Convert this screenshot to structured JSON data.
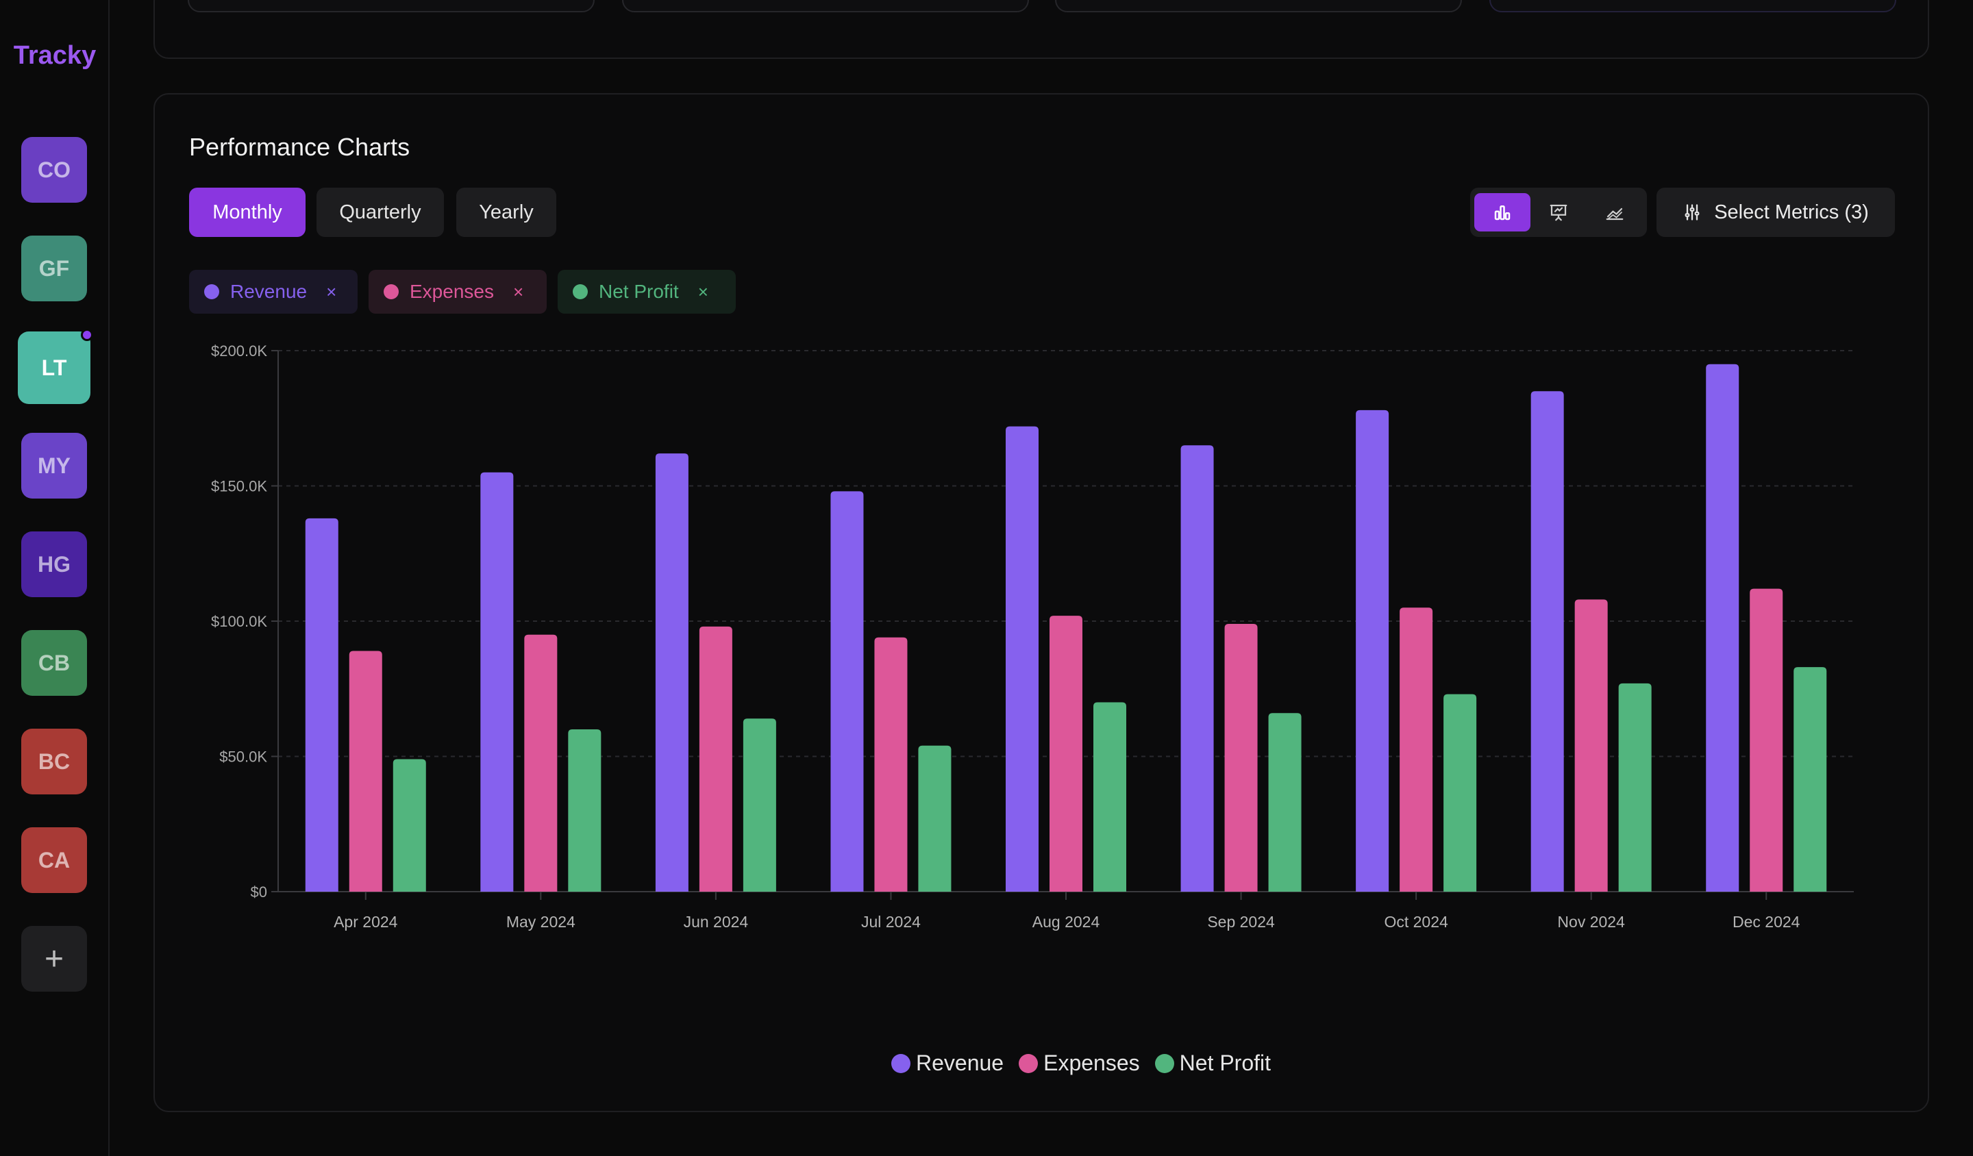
{
  "app": {
    "name": "Tracky"
  },
  "workspaces": [
    {
      "initials": "CO",
      "color": "#6a3fc2"
    },
    {
      "initials": "GF",
      "color": "#3e8c78"
    },
    {
      "initials": "LT",
      "color": "#4db8a4",
      "active": true
    },
    {
      "initials": "MY",
      "color": "#6a44c8"
    },
    {
      "initials": "HG",
      "color": "#4a23a0"
    },
    {
      "initials": "CB",
      "color": "#3a8553"
    },
    {
      "initials": "BC",
      "color": "#a83a34"
    },
    {
      "initials": "CA",
      "color": "#a83a36"
    }
  ],
  "add_workspace_label": "+",
  "panel": {
    "title": "Performance Charts",
    "periods": [
      {
        "label": "Monthly",
        "active": true
      },
      {
        "label": "Quarterly",
        "active": false
      },
      {
        "label": "Yearly",
        "active": false
      }
    ],
    "view_modes": [
      {
        "icon": "bar-chart-icon",
        "active": true
      },
      {
        "icon": "presentation-chart-icon",
        "active": false
      },
      {
        "icon": "area-chart-icon",
        "active": false
      }
    ],
    "select_metrics_label": "Select Metrics (3)",
    "remove_icon": "×"
  },
  "colors": {
    "revenue": "#8661ee",
    "expenses": "#dd5799",
    "net_profit": "#52b57e",
    "accent": "#8a36e0"
  },
  "chart_data": {
    "type": "bar",
    "categories": [
      "Apr 2024",
      "May 2024",
      "Jun 2024",
      "Jul 2024",
      "Aug 2024",
      "Sep 2024",
      "Oct 2024",
      "Nov 2024",
      "Dec 2024"
    ],
    "series": [
      {
        "name": "Revenue",
        "color": "#8661ee",
        "values": [
          138000,
          155000,
          162000,
          148000,
          172000,
          165000,
          178000,
          185000,
          195000
        ]
      },
      {
        "name": "Expenses",
        "color": "#dd5799",
        "values": [
          89000,
          95000,
          98000,
          94000,
          102000,
          99000,
          105000,
          108000,
          112000
        ]
      },
      {
        "name": "Net Profit",
        "color": "#52b57e",
        "values": [
          49000,
          60000,
          64000,
          54000,
          70000,
          66000,
          73000,
          77000,
          83000
        ]
      }
    ],
    "yticks": [
      "$0",
      "$50.0K",
      "$100.0K",
      "$150.0K",
      "$200.0K"
    ],
    "ytick_values": [
      0,
      50000,
      100000,
      150000,
      200000
    ],
    "ylim": [
      0,
      200000
    ],
    "grid": true,
    "legend": "bottom-center",
    "title": "",
    "xlabel": "",
    "ylabel": ""
  }
}
